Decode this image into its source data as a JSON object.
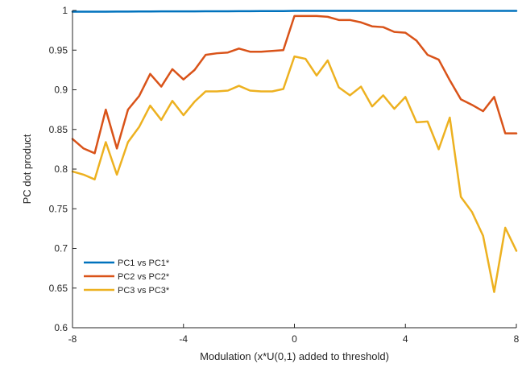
{
  "chart_data": {
    "type": "line",
    "title": "",
    "xlabel": "Modulation (x*U(0,1) added to threshold)",
    "ylabel": "PC dot product",
    "xlim": [
      -8,
      8
    ],
    "ylim": [
      0.6,
      1
    ],
    "xticks": [
      -8,
      -4,
      0,
      4,
      8
    ],
    "xtick_labels": [
      "-8",
      "-4",
      "0",
      "4",
      "8"
    ],
    "yticks": [
      0.6,
      0.65,
      0.7,
      0.75,
      0.8,
      0.85,
      0.9,
      0.95,
      1
    ],
    "ytick_labels": [
      "0.6",
      "0.65",
      "0.7",
      "0.75",
      "0.8",
      "0.85",
      "0.9",
      "0.95",
      "1"
    ],
    "grid": false,
    "legend_position": "bottom-left",
    "x": [
      -8,
      -7.6,
      -7.2,
      -6.8,
      -6.4,
      -6,
      -5.6,
      -5.2,
      -4.8,
      -4.4,
      -4,
      -3.6,
      -3.2,
      -2.8,
      -2.4,
      -2,
      -1.6,
      -1.2,
      -0.8,
      -0.4,
      0,
      0.4,
      0.8,
      1.2,
      1.6,
      2,
      2.4,
      2.8,
      3.2,
      3.6,
      4,
      4.4,
      4.8,
      5.2,
      5.6,
      6,
      6.4,
      6.8,
      7.2,
      7.6,
      8
    ],
    "series": [
      {
        "name": "PC1 vs PC1*",
        "color": "#0072BD",
        "values": [
          0.9985,
          0.9985,
          0.9985,
          0.9985,
          0.9986,
          0.9986,
          0.9987,
          0.9987,
          0.9988,
          0.9988,
          0.9989,
          0.9989,
          0.999,
          0.999,
          0.999,
          0.9991,
          0.9991,
          0.9992,
          0.9992,
          0.9993,
          0.9995,
          0.9995,
          0.9995,
          0.9995,
          0.9995,
          0.9995,
          0.9995,
          0.9995,
          0.9995,
          0.9995,
          0.9995,
          0.9995,
          0.9995,
          0.9995,
          0.9995,
          0.9995,
          0.9995,
          0.9995,
          0.9995,
          0.9995,
          0.9995
        ]
      },
      {
        "name": "PC2 vs PC2*",
        "color": "#D95319",
        "values": [
          0.838,
          0.826,
          0.82,
          0.875,
          0.826,
          0.875,
          0.892,
          0.92,
          0.904,
          0.926,
          0.913,
          0.925,
          0.944,
          0.946,
          0.947,
          0.952,
          0.948,
          0.948,
          0.949,
          0.95,
          0.993,
          0.993,
          0.993,
          0.992,
          0.988,
          0.988,
          0.985,
          0.98,
          0.979,
          0.973,
          0.972,
          0.962,
          0.944,
          0.938,
          0.912,
          0.888,
          0.881,
          0.873,
          0.891,
          0.845,
          0.845
        ]
      },
      {
        "name": "PC3 vs PC3*",
        "color": "#EDB120",
        "values": [
          0.797,
          0.793,
          0.787,
          0.834,
          0.793,
          0.834,
          0.853,
          0.88,
          0.862,
          0.886,
          0.868,
          0.885,
          0.898,
          0.898,
          0.899,
          0.905,
          0.899,
          0.898,
          0.898,
          0.901,
          0.942,
          0.939,
          0.918,
          0.937,
          0.903,
          0.893,
          0.904,
          0.879,
          0.893,
          0.876,
          0.891,
          0.859,
          0.86,
          0.825,
          0.865,
          0.765,
          0.746,
          0.716,
          0.645,
          0.726,
          0.697
        ]
      }
    ]
  }
}
